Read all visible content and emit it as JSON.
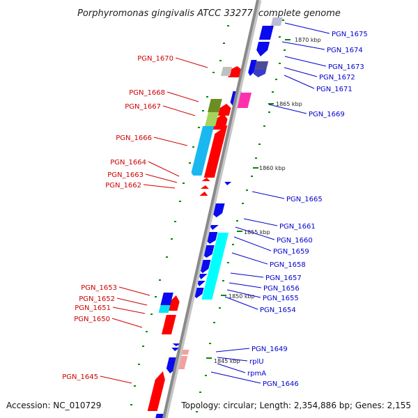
{
  "title": "Porphyromonas gingivalis ATCC 33277, complete genome",
  "footer": {
    "accession": "Accession: NC_010729",
    "stats": "Topology: circular; Length: 2,354,886 bp; Genes: 2,155"
  },
  "colors": {
    "plus_strand_label": "#cc0000",
    "minus_strand_label": "#0000cc",
    "tick": "#007700",
    "backbone": "#888888"
  },
  "kbp_markers": [
    "1870 kbp",
    "1865 kbp",
    "1860 kbp",
    "1855 kbp",
    "1850 kbp",
    "1845 kbp"
  ],
  "genes_right": [
    "PGN_1675",
    "PGN_1674",
    "PGN_1673",
    "PGN_1672",
    "PGN_1671",
    "PGN_1669",
    "PGN_1665",
    "PGN_1661",
    "PGN_1660",
    "PGN_1659",
    "PGN_1658",
    "PGN_1657",
    "PGN_1656",
    "PGN_1655",
    "PGN_1654",
    "PGN_1649",
    "rplU",
    "rpmA",
    "PGN_1646"
  ],
  "genes_left": [
    "PGN_1670",
    "PGN_1668",
    "PGN_1667",
    "PGN_1666",
    "PGN_1664",
    "PGN_1663",
    "PGN_1662",
    "PGN_1653",
    "PGN_1652",
    "PGN_1651",
    "PGN_1650",
    "PGN_1645"
  ]
}
